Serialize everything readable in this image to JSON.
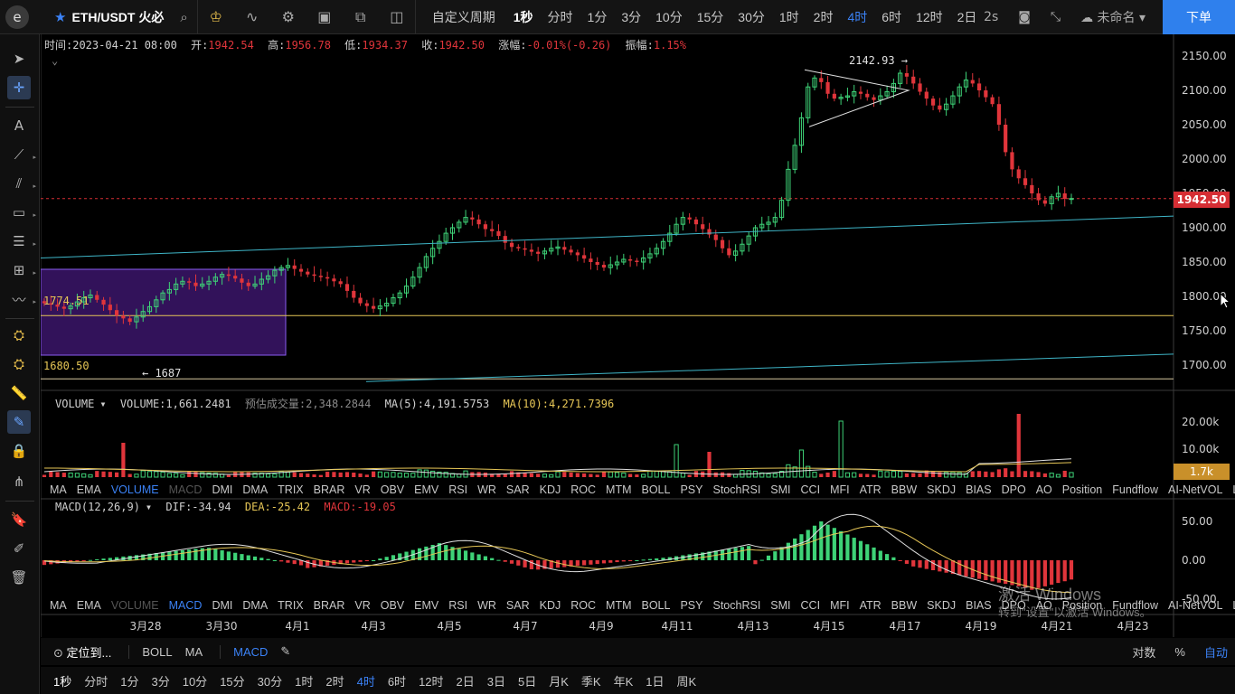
{
  "topbar": {
    "logo_glyph": "e",
    "symbol": "ETH/USDT 火必",
    "custom_period": "自定义周期",
    "periods": [
      "1秒",
      "分时",
      "1分",
      "3分",
      "10分",
      "15分",
      "30分",
      "1时",
      "2时",
      "4时",
      "6时",
      "12时",
      "2日"
    ],
    "active_period": "4时",
    "interval": "2s",
    "account": "未命名",
    "order_button": "下单"
  },
  "info_bar": {
    "time_label": "时间:",
    "time": "2023-04-21 08:00",
    "open_label": "开:",
    "open": "1942.54",
    "high_label": "高:",
    "high": "1956.78",
    "low_label": "低:",
    "low": "1934.37",
    "close_label": "收:",
    "close": "1942.50",
    "change_label": "涨幅:",
    "change": "-0.01%(-0.26)",
    "amp_label": "振幅:",
    "amp": "1.15%"
  },
  "price_chart": {
    "y_ticks": [
      "2150.00",
      "2100.00",
      "2050.00",
      "2000.00",
      "1950.00",
      "1900.00",
      "1850.00",
      "1800.00",
      "1750.00",
      "1700.00"
    ],
    "current_price": "1942.50",
    "high_annotation": "2142.93 →",
    "low_annotation": "← 1687",
    "box_top_label": "1774.51",
    "box_bottom_label": "1680.50"
  },
  "volume": {
    "label": "VOLUME",
    "value": "VOLUME:1,661.2481",
    "predicted": "预估成交量:2,348.2844",
    "ma5": "MA(5):4,191.5753",
    "ma10": "MA(10):4,271.7396",
    "y_ticks": [
      "20.00k",
      "10.00k"
    ],
    "current": "1.7k"
  },
  "indicators_main": [
    "MA",
    "EMA",
    "VOLUME",
    "MACD",
    "DMI",
    "DMA",
    "TRIX",
    "BRAR",
    "VR",
    "OBV",
    "EMV",
    "RSI",
    "WR",
    "SAR",
    "KDJ",
    "ROC",
    "MTM",
    "BOLL",
    "PSY",
    "StochRSI",
    "SMI",
    "CCI",
    "MFI",
    "ATR",
    "BBW",
    "SKDJ",
    "BIAS",
    "DPO",
    "AO",
    "Position",
    "Fundflow",
    "AI-NetVOL",
    "LSUR"
  ],
  "macd": {
    "label": "MACD(12,26,9)",
    "dif": "DIF:-34.94",
    "dea": "DEA:-25.42",
    "macd": "MACD:-19.05",
    "y_ticks": [
      "50.00",
      "0.00",
      "-50.00"
    ]
  },
  "dates": [
    "3月28",
    "3月30",
    "4月1",
    "4月3",
    "4月5",
    "4月7",
    "4月9",
    "4月11",
    "4月13",
    "4月15",
    "4月17",
    "4月19",
    "4月21",
    "4月23"
  ],
  "bottom_bar": {
    "locate": "定位到...",
    "boll": "BOLL",
    "ma": "MA",
    "macd": "MACD",
    "log": "对数",
    "percent": "%",
    "auto": "自动"
  },
  "bottom_periods": [
    "1秒",
    "分时",
    "1分",
    "3分",
    "10分",
    "15分",
    "30分",
    "1时",
    "2时",
    "4时",
    "6时",
    "12时",
    "2日",
    "3日",
    "5日",
    "月K",
    "季K",
    "年K",
    "1日",
    "周K"
  ],
  "watermark": {
    "title": "激活 Windows",
    "subtitle": "转到\"设置\"以激活 Windows。"
  },
  "colors": {
    "up": "#3ed277",
    "down": "#e0353b",
    "accent": "#3b82f6",
    "gold": "#e6c656"
  },
  "chart_data": {
    "type": "candlestick",
    "series_close": [
      1790,
      1788,
      1785,
      1782,
      1786,
      1792,
      1798,
      1802,
      1795,
      1788,
      1780,
      1772,
      1768,
      1763,
      1770,
      1778,
      1785,
      1795,
      1805,
      1810,
      1818,
      1822,
      1820,
      1815,
      1818,
      1822,
      1828,
      1832,
      1830,
      1826,
      1820,
      1815,
      1818,
      1825,
      1830,
      1838,
      1842,
      1845,
      1840,
      1836,
      1832,
      1830,
      1828,
      1826,
      1822,
      1818,
      1808,
      1798,
      1790,
      1786,
      1782,
      1786,
      1790,
      1798,
      1805,
      1815,
      1828,
      1842,
      1858,
      1870,
      1880,
      1892,
      1900,
      1908,
      1915,
      1912,
      1905,
      1898,
      1895,
      1888,
      1878,
      1872,
      1870,
      1868,
      1865,
      1862,
      1866,
      1870,
      1872,
      1868,
      1864,
      1860,
      1855,
      1850,
      1846,
      1842,
      1846,
      1850,
      1854,
      1852,
      1850,
      1856,
      1862,
      1870,
      1880,
      1892,
      1905,
      1915,
      1912,
      1905,
      1898,
      1890,
      1882,
      1870,
      1860,
      1866,
      1876,
      1888,
      1900,
      1905,
      1908,
      1915,
      1940,
      1985,
      2020,
      2060,
      2105,
      2118,
      2112,
      2095,
      2088,
      2090,
      2092,
      2098,
      2095,
      2090,
      2086,
      2092,
      2098,
      2110,
      2125,
      2120,
      2110,
      2098,
      2088,
      2078,
      2072,
      2080,
      2092,
      2105,
      2115,
      2110,
      2100,
      2090,
      2080,
      2050,
      2010,
      1985,
      1972,
      1962,
      1950,
      1940,
      1935,
      1945,
      1950,
      1942,
      1942.5
    ],
    "y_range": [
      1680,
      2160
    ]
  }
}
